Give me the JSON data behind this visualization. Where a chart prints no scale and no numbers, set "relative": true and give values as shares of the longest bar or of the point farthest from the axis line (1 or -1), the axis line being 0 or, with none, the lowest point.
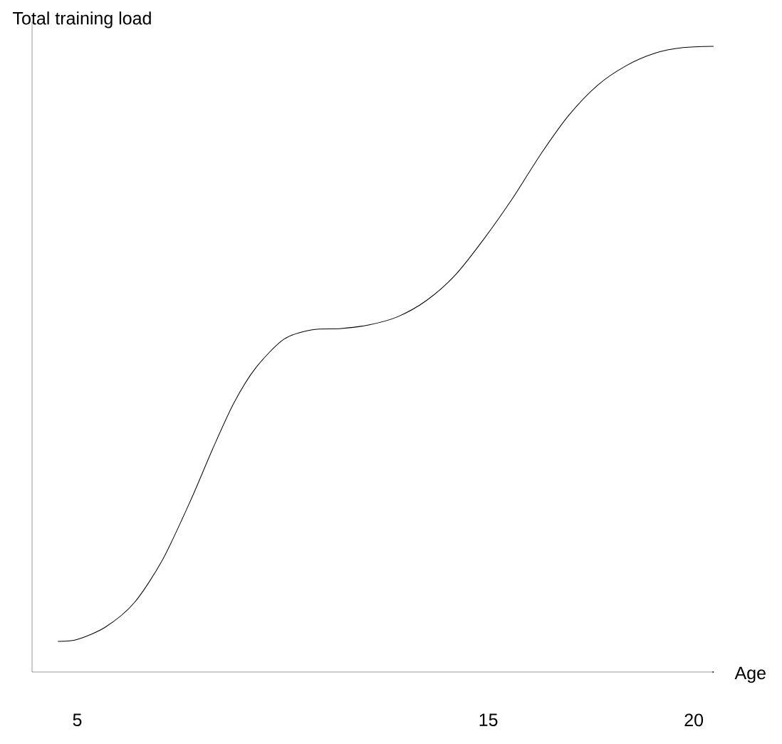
{
  "chart_data": {
    "type": "line",
    "relative": true,
    "xlabel": "Age",
    "ylabel": "Total training load",
    "xlim": [
      3.9,
      20.5
    ],
    "xticks": [
      5,
      15,
      20
    ],
    "marker": "none",
    "line_style": "solid",
    "series": [
      {
        "color": "#000000",
        "x": [
          4.53,
          5,
          5.69,
          6.39,
          7.08,
          7.77,
          8.29,
          8.81,
          9.34,
          10.03,
          10.72,
          11.42,
          12.11,
          12.8,
          13.5,
          14.19,
          14.88,
          15.58,
          16.27,
          16.96,
          17.66,
          18.35,
          19.05,
          19.74,
          20.48
        ],
        "values": [
          0.049,
          0.052,
          0.072,
          0.111,
          0.18,
          0.276,
          0.356,
          0.43,
          0.486,
          0.532,
          0.547,
          0.549,
          0.555,
          0.568,
          0.594,
          0.634,
          0.691,
          0.756,
          0.827,
          0.89,
          0.938,
          0.969,
          0.989,
          0.998,
          1
        ]
      }
    ]
  }
}
